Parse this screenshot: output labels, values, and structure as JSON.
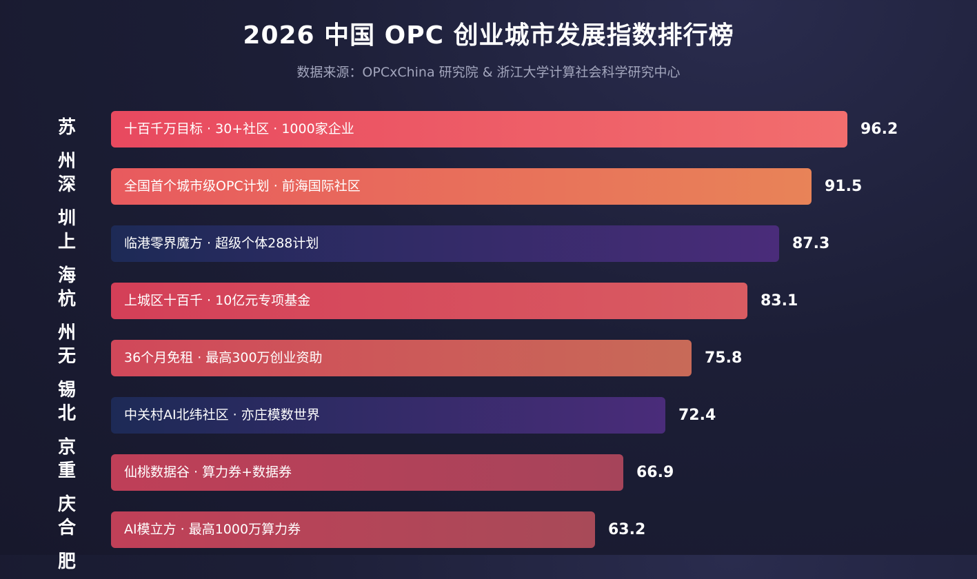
{
  "header": {
    "title": "2026 中国 OPC 创业城市发展指数排行榜",
    "source": "数据来源：OPCxChina 研究院 & 浙江大学计算社会科学研究中心"
  },
  "chart_data": {
    "type": "bar",
    "orientation": "horizontal",
    "title": "2026 中国 OPC 创业城市发展指数排行榜",
    "subtitle": "数据来源：OPCxChina 研究院 & 浙江大学计算社会科学研究中心",
    "categories": [
      "苏州",
      "深圳",
      "上海",
      "杭州",
      "无锡",
      "北京",
      "重庆",
      "合肥"
    ],
    "values": [
      96.2,
      91.5,
      87.3,
      83.1,
      75.8,
      72.4,
      66.9,
      63.2
    ],
    "bar_labels": [
      "十百千万目标 · 30+社区 · 1000家企业",
      "全国首个城市级OPC计划 · 前海国际社区",
      "临港零界魔方 · 超级个体288计划",
      "上城区十百千 · 10亿元专项基金",
      "36个月免租 · 最高300万创业资助",
      "中关村AI北纬社区 · 亦庄模数世界",
      "仙桃数据谷 · 算力券+数据券",
      "AI模立方 · 最高1000万算力券"
    ],
    "bar_colors": [
      [
        "#e8495f",
        "#f26e6e"
      ],
      [
        "#e85a5e",
        "#e88358"
      ],
      [
        "#1d2a56",
        "#4a2c7a"
      ],
      [
        "#d43f58",
        "#d95c62"
      ],
      [
        "#d1485a",
        "#c86a58"
      ],
      [
        "#1d2a56",
        "#4a2c7a"
      ],
      [
        "#bf3f58",
        "#a6445a"
      ],
      [
        "#c04058",
        "#a84a58"
      ]
    ],
    "xlim": [
      0,
      96.2
    ],
    "grid": false,
    "legend": "none"
  }
}
